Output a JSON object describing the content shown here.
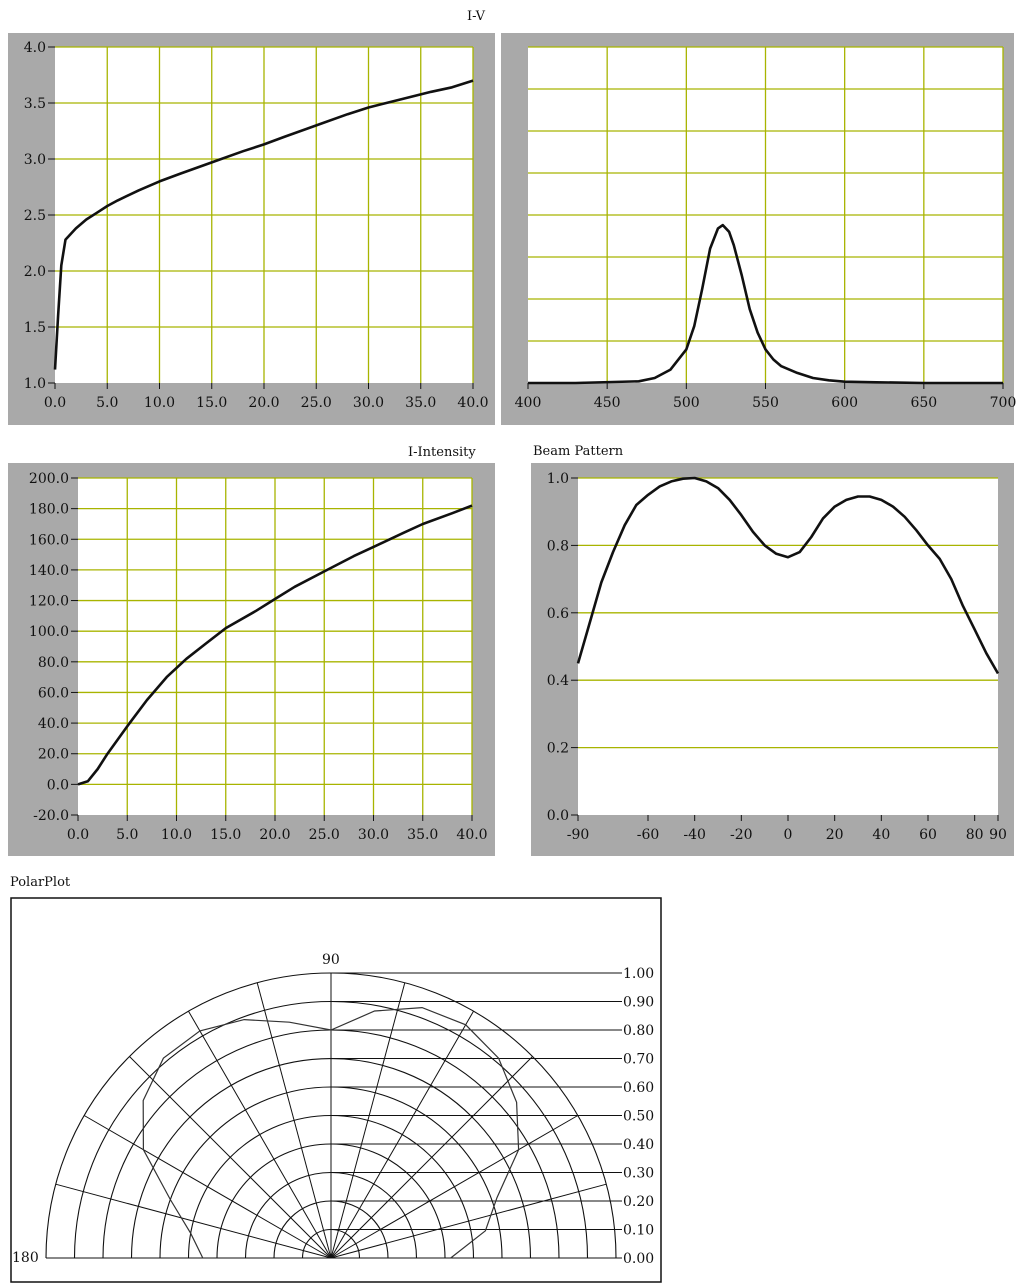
{
  "colors": {
    "panel": "#a9a9a9",
    "plot_bg": "#ffffff",
    "grid": "#a8b400",
    "line": "#111111"
  },
  "chart_data": [
    {
      "type": "line",
      "title": "I-V",
      "xlim": [
        0,
        40
      ],
      "ylim": [
        1.0,
        4.0
      ],
      "xticks": [
        "0.0",
        "5.0",
        "10.0",
        "15.0",
        "20.0",
        "25.0",
        "30.0",
        "35.0",
        "40.0"
      ],
      "yticks": [
        "1.0",
        "1.5",
        "2.0",
        "2.5",
        "3.0",
        "3.5",
        "4.0"
      ],
      "grid": true,
      "series": [
        {
          "x": [
            0,
            0.3,
            0.6,
            1.0,
            2,
            3,
            4,
            5,
            6,
            8,
            10,
            12,
            15,
            18,
            20,
            22,
            25,
            28,
            30,
            33,
            36,
            38,
            40
          ],
          "y": [
            1.12,
            1.6,
            2.05,
            2.28,
            2.38,
            2.46,
            2.52,
            2.58,
            2.63,
            2.72,
            2.8,
            2.87,
            2.97,
            3.07,
            3.13,
            3.2,
            3.3,
            3.4,
            3.46,
            3.53,
            3.6,
            3.64,
            3.7
          ]
        }
      ]
    },
    {
      "type": "line",
      "title": "",
      "xlim": [
        400,
        700
      ],
      "ylim": [
        0,
        1
      ],
      "xticks": [
        "400",
        "450",
        "500",
        "550",
        "600",
        "650",
        "700"
      ],
      "grid": true,
      "series": [
        {
          "x": [
            400,
            430,
            470,
            480,
            490,
            500,
            505,
            510,
            515,
            520,
            523,
            527,
            530,
            535,
            540,
            545,
            550,
            555,
            560,
            570,
            580,
            590,
            600,
            620,
            650,
            700
          ],
          "y": [
            0.0,
            0.0,
            0.005,
            0.015,
            0.04,
            0.1,
            0.17,
            0.28,
            0.4,
            0.46,
            0.47,
            0.45,
            0.41,
            0.32,
            0.22,
            0.15,
            0.1,
            0.07,
            0.05,
            0.03,
            0.015,
            0.008,
            0.004,
            0.002,
            0.0,
            0.0
          ]
        }
      ]
    },
    {
      "type": "line",
      "title": "I-Intensity",
      "xlim": [
        0,
        40
      ],
      "ylim": [
        -20,
        200
      ],
      "xticks": [
        "0.0",
        "5.0",
        "10.0",
        "15.0",
        "20.0",
        "25.0",
        "30.0",
        "35.0",
        "40.0"
      ],
      "yticks": [
        "-20.0",
        "0.0",
        "20.0",
        "40.0",
        "60.0",
        "80.0",
        "100.0",
        "120.0",
        "140.0",
        "160.0",
        "180.0",
        "200.0"
      ],
      "grid": true,
      "series": [
        {
          "x": [
            0,
            1,
            2,
            3,
            5,
            7,
            9,
            11,
            13,
            15,
            18,
            20,
            22,
            25,
            28,
            30,
            33,
            35,
            38,
            40
          ],
          "y": [
            0,
            2,
            10,
            20,
            38,
            55,
            70,
            82,
            92,
            102,
            113,
            121,
            129,
            139,
            149,
            155,
            164,
            170,
            177,
            182
          ]
        }
      ]
    },
    {
      "type": "line",
      "title": "Beam Pattern",
      "xlim": [
        -90,
        90
      ],
      "ylim": [
        0,
        1
      ],
      "xticks": [
        {
          "v": -90,
          "t": "-90"
        },
        {
          "v": -60,
          "t": "-60"
        },
        {
          "v": -40,
          "t": "-40"
        },
        {
          "v": -20,
          "t": "-20"
        },
        {
          "v": 0,
          "t": "0"
        },
        {
          "v": 20,
          "t": "20"
        },
        {
          "v": 40,
          "t": "40"
        },
        {
          "v": 60,
          "t": "60"
        },
        {
          "v": 80,
          "t": "80"
        },
        {
          "v": 90,
          "t": "90"
        }
      ],
      "yticks": [
        "0.0",
        "0.2",
        "0.4",
        "0.6",
        "0.8",
        "1.0"
      ],
      "grid": "horizontal",
      "series": [
        {
          "x": [
            -90,
            -85,
            -80,
            -75,
            -70,
            -65,
            -60,
            -55,
            -50,
            -45,
            -40,
            -35,
            -30,
            -25,
            -20,
            -15,
            -10,
            -5,
            0,
            5,
            10,
            15,
            20,
            25,
            30,
            35,
            40,
            45,
            50,
            55,
            60,
            65,
            70,
            75,
            80,
            85,
            90
          ],
          "y": [
            0.45,
            0.57,
            0.69,
            0.78,
            0.86,
            0.92,
            0.95,
            0.975,
            0.99,
            0.998,
            1.0,
            0.99,
            0.97,
            0.935,
            0.89,
            0.84,
            0.8,
            0.775,
            0.765,
            0.78,
            0.825,
            0.88,
            0.915,
            0.935,
            0.945,
            0.945,
            0.935,
            0.915,
            0.885,
            0.845,
            0.8,
            0.76,
            0.7,
            0.62,
            0.55,
            0.48,
            0.42
          ]
        }
      ]
    },
    {
      "type": "polar",
      "title": "PolarPlot",
      "angle_labels": [
        "90",
        "180"
      ],
      "radial_ticks": [
        "0.00",
        "0.10",
        "0.20",
        "0.30",
        "0.40",
        "0.50",
        "0.60",
        "0.70",
        "0.80",
        "0.90",
        "1.00"
      ],
      "series": [
        {
          "theta_deg": [
            0,
            10,
            20,
            30,
            40,
            50,
            60,
            70,
            80,
            90,
            100,
            110,
            120,
            130,
            140,
            150,
            160,
            170,
            180
          ],
          "r": [
            0.42,
            0.55,
            0.62,
            0.76,
            0.85,
            0.915,
            0.945,
            0.935,
            0.88,
            0.8,
            0.84,
            0.89,
            0.92,
            0.915,
            0.86,
            0.76,
            0.6,
            0.5,
            0.45
          ]
        }
      ]
    }
  ]
}
